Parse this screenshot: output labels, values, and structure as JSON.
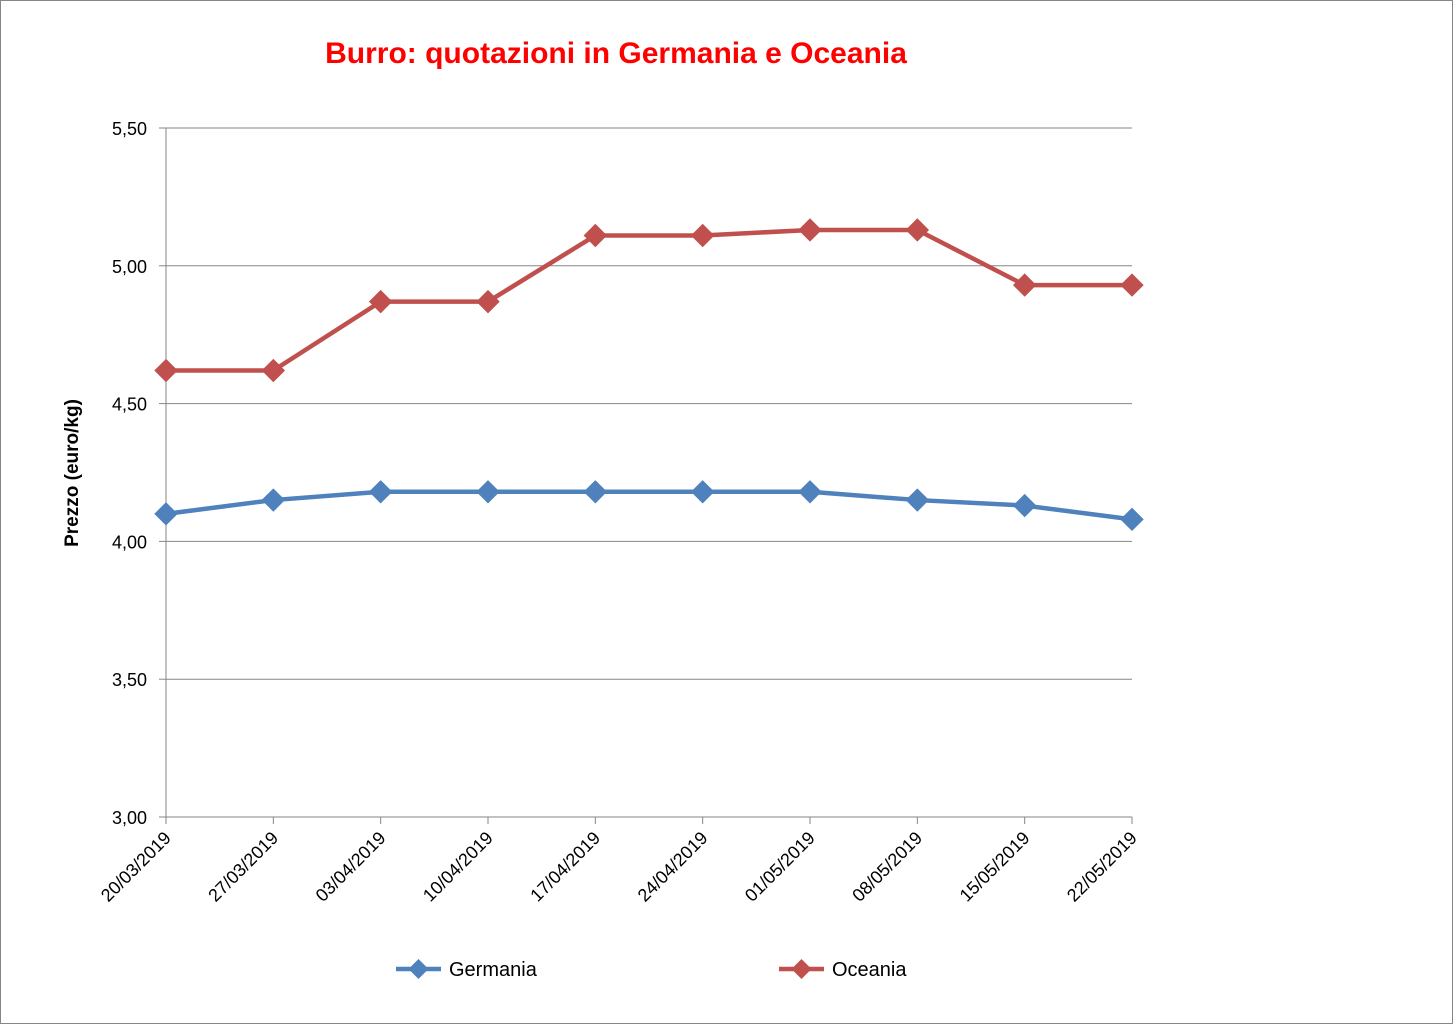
{
  "chart_data": {
    "type": "line",
    "title": "Burro: quotazioni in Germania e Oceania",
    "title_color": "#FF0000",
    "xlabel": "",
    "ylabel": "Prezzo (euro/kg)",
    "categories": [
      "20/03/2019",
      "27/03/2019",
      "03/04/2019",
      "10/04/2019",
      "17/04/2019",
      "24/04/2019",
      "01/05/2019",
      "08/05/2019",
      "15/05/2019",
      "22/05/2019"
    ],
    "ylim": [
      3.0,
      5.5
    ],
    "yticks": [
      {
        "value": 3.0,
        "label": "3,00"
      },
      {
        "value": 3.5,
        "label": "3,50"
      },
      {
        "value": 4.0,
        "label": "4,00"
      },
      {
        "value": 4.5,
        "label": "4,50"
      },
      {
        "value": 5.0,
        "label": "5,00"
      },
      {
        "value": 5.5,
        "label": "5,50"
      }
    ],
    "grid": true,
    "legend_position": "bottom",
    "series": [
      {
        "name": "Germania",
        "color": "#4F81BD",
        "marker": "diamond",
        "values": [
          4.1,
          4.15,
          4.18,
          4.18,
          4.18,
          4.18,
          4.18,
          4.15,
          4.13,
          4.08
        ]
      },
      {
        "name": "Oceania",
        "color": "#C0504D",
        "marker": "diamond",
        "values": [
          4.62,
          4.62,
          4.87,
          4.87,
          5.11,
          5.11,
          5.13,
          5.13,
          4.93,
          4.93
        ]
      }
    ]
  }
}
